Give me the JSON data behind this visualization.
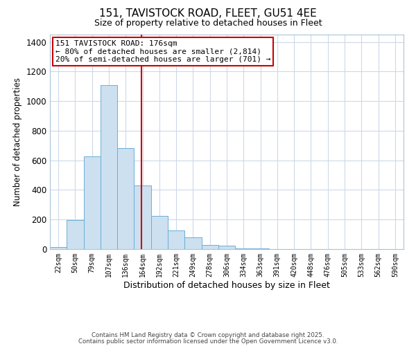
{
  "title_line1": "151, TAVISTOCK ROAD, FLEET, GU51 4EE",
  "title_line2": "Size of property relative to detached houses in Fleet",
  "bar_labels": [
    "22sqm",
    "50sqm",
    "79sqm",
    "107sqm",
    "136sqm",
    "164sqm",
    "192sqm",
    "221sqm",
    "249sqm",
    "278sqm",
    "306sqm",
    "334sqm",
    "363sqm",
    "391sqm",
    "420sqm",
    "448sqm",
    "476sqm",
    "505sqm",
    "533sqm",
    "562sqm",
    "590sqm"
  ],
  "bar_values": [
    15,
    195,
    625,
    1110,
    685,
    430,
    225,
    125,
    80,
    30,
    25,
    5,
    3,
    0,
    0,
    0,
    0,
    0,
    0,
    0,
    0
  ],
  "bar_color": "#cce0f0",
  "bar_edge_color": "#6baed6",
  "xlabel": "Distribution of detached houses by size in Fleet",
  "ylabel": "Number of detached properties",
  "ylim": [
    0,
    1450
  ],
  "yticks": [
    0,
    200,
    400,
    600,
    800,
    1000,
    1200,
    1400
  ],
  "property_label_line1": "151 TAVISTOCK ROAD: 176sqm",
  "annotation_line1": "← 80% of detached houses are smaller (2,814)",
  "annotation_line2": "20% of semi-detached houses are larger (701) →",
  "annotation_box_color": "#ffffff",
  "annotation_box_edge_color": "#cc0000",
  "vline_color": "#cc0000",
  "footer1": "Contains HM Land Registry data © Crown copyright and database right 2025.",
  "footer2": "Contains public sector information licensed under the Open Government Licence v3.0.",
  "background_color": "#ffffff",
  "grid_color": "#ccd9e8"
}
